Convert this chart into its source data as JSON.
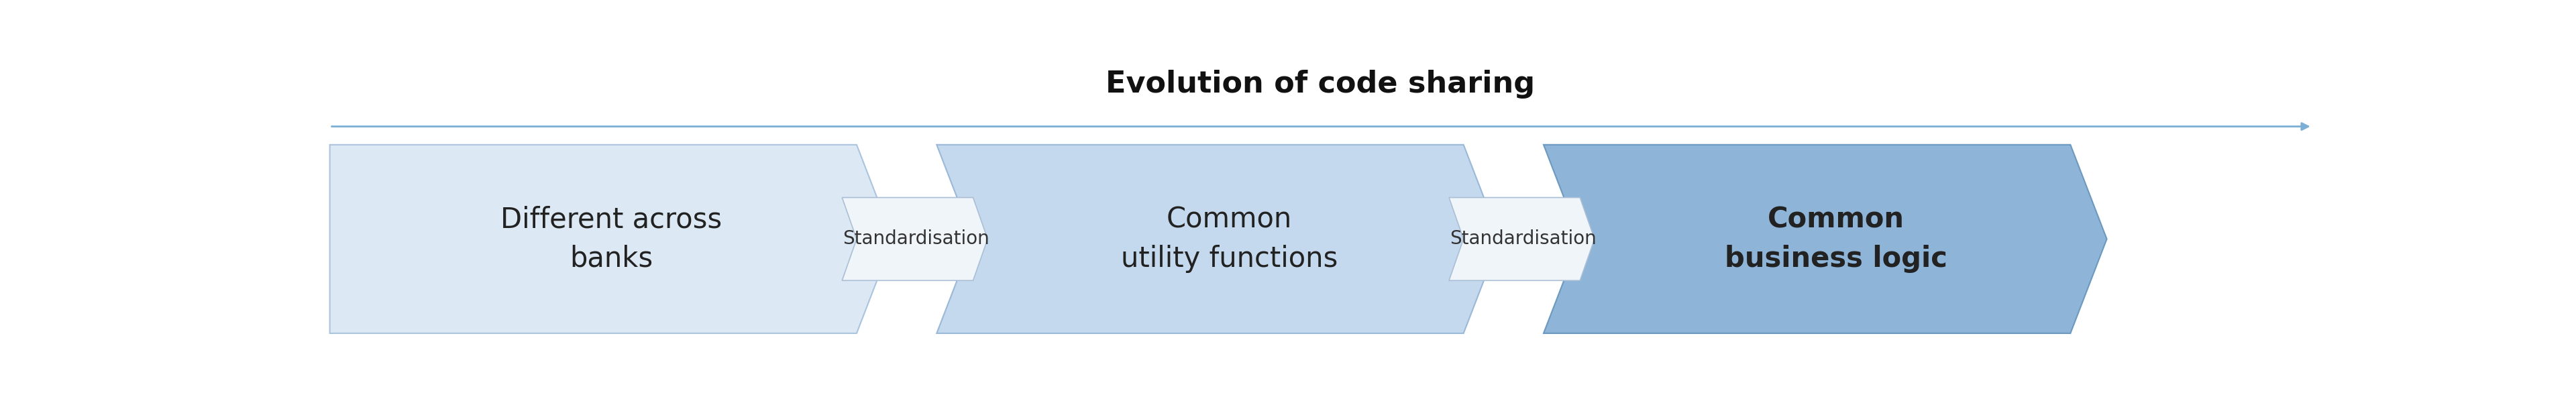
{
  "title": "Evolution of code sharing",
  "title_fontsize": 32,
  "title_fontweight": "bold",
  "background_color": "#ffffff",
  "big_arrows": [
    {
      "label": "Different across\nbanks",
      "color": "#dce9f5",
      "edge_color": "#aac4de",
      "text_color": "#222222",
      "fontsize": 30,
      "fontweight": "normal"
    },
    {
      "label": "Common\nutility functions",
      "color": "#c5d9ee",
      "edge_color": "#9ab8d8",
      "text_color": "#222222",
      "fontsize": 30,
      "fontweight": "normal"
    },
    {
      "label": "Common\nbusiness logic",
      "color": "#8eb4d8",
      "edge_color": "#6b99c0",
      "text_color": "#222222",
      "fontsize": 30,
      "fontweight": "bold"
    }
  ],
  "small_arrows": [
    {
      "label": "Standardisation",
      "color": "#f0f5fa",
      "edge_color": "#aabfd6",
      "text_color": "#333333",
      "fontsize": 20
    },
    {
      "label": "Standardisation",
      "color": "#f0f5fa",
      "edge_color": "#aabfd6",
      "text_color": "#333333",
      "fontsize": 20
    }
  ],
  "top_arrow_color": "#7BAFD4",
  "fig_width": 38.4,
  "fig_height": 5.89
}
